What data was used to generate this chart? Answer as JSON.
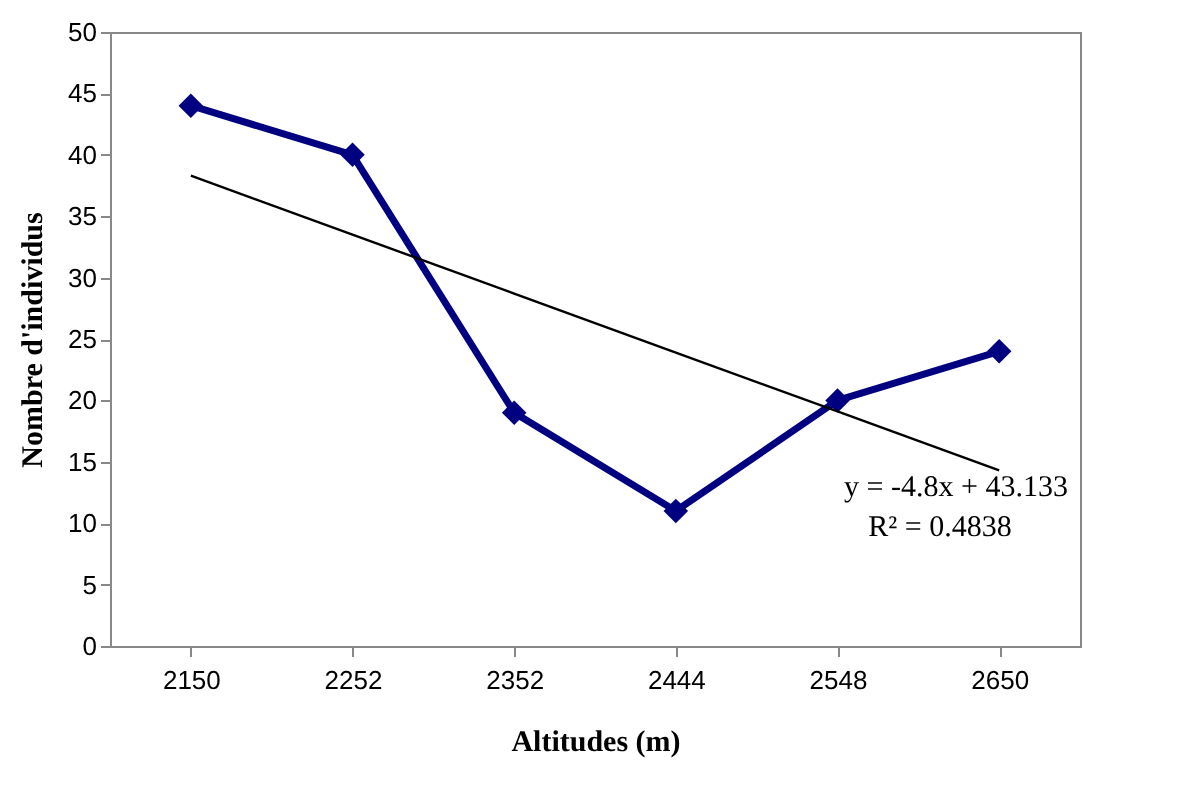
{
  "chart_data": {
    "type": "line",
    "xlabel": "Altitudes (m)",
    "ylabel": "Nombre d'individus",
    "categories": [
      "2150",
      "2252",
      "2352",
      "2444",
      "2548",
      "2650"
    ],
    "series": [
      {
        "color": "#000080",
        "values": [
          44,
          40,
          19,
          11,
          20,
          24
        ]
      },
      {
        "type": "line",
        "color": "#000000",
        "values": [
          38.3,
          33.5,
          28.7,
          23.9,
          19.1,
          14.3
        ],
        "marker": "none"
      }
    ],
    "ylim": [
      0,
      50
    ],
    "yticks": [
      0,
      5,
      10,
      15,
      20,
      25,
      30,
      35,
      40,
      45,
      50
    ],
    "marker": "diamond",
    "line_style": "solid",
    "annotations": [
      "y = -4.8x + 43.133",
      "R² = 0.4838"
    ]
  }
}
